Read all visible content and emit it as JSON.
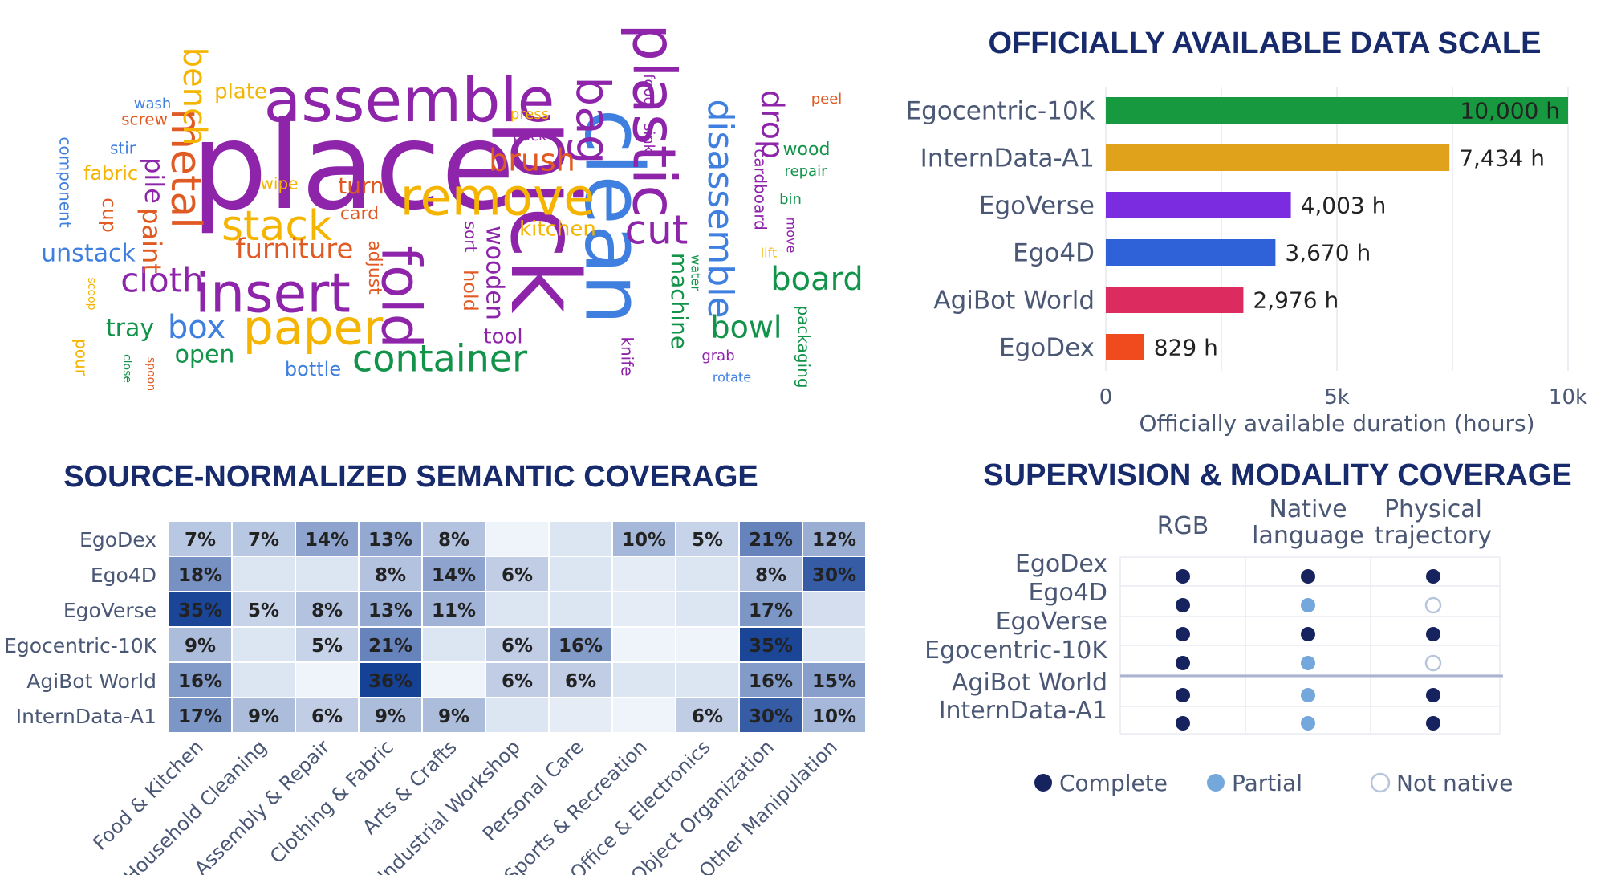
{
  "chart_data": [
    {
      "type": "wordcloud",
      "words": [
        {
          "text": "place",
          "color": "#8e24aa"
        },
        {
          "text": "assemble",
          "color": "#8e24aa"
        },
        {
          "text": "pick",
          "color": "#8e24aa"
        },
        {
          "text": "clean",
          "color": "#3f7fe0"
        },
        {
          "text": "plastic",
          "color": "#8e24aa"
        },
        {
          "text": "remove",
          "color": "#f4b400"
        },
        {
          "text": "insert",
          "color": "#8e24aa"
        },
        {
          "text": "fold",
          "color": "#8e24aa"
        },
        {
          "text": "paper",
          "color": "#f4b400"
        },
        {
          "text": "stack",
          "color": "#f4b400"
        },
        {
          "text": "bag",
          "color": "#8e24aa"
        },
        {
          "text": "cut",
          "color": "#8e24aa"
        },
        {
          "text": "metal",
          "color": "#e05a24"
        },
        {
          "text": "container",
          "color": "#12934a"
        },
        {
          "text": "disassemble",
          "color": "#3f7fe0"
        },
        {
          "text": "bench",
          "color": "#f4b400"
        },
        {
          "text": "drop",
          "color": "#8e24aa"
        },
        {
          "text": "box",
          "color": "#3f7fe0"
        },
        {
          "text": "board",
          "color": "#12934a"
        },
        {
          "text": "bowl",
          "color": "#12934a"
        },
        {
          "text": "cloth",
          "color": "#8e24aa"
        },
        {
          "text": "brush",
          "color": "#e05a24"
        },
        {
          "text": "furniture",
          "color": "#e05a24"
        },
        {
          "text": "pile",
          "color": "#8e24aa"
        },
        {
          "text": "paint",
          "color": "#e05a24"
        },
        {
          "text": "wooden",
          "color": "#8e24aa"
        },
        {
          "text": "machine",
          "color": "#12934a"
        },
        {
          "text": "unstack",
          "color": "#3f7fe0"
        },
        {
          "text": "open",
          "color": "#12934a"
        },
        {
          "text": "tray",
          "color": "#12934a"
        },
        {
          "text": "tool",
          "color": "#8e24aa"
        },
        {
          "text": "turn",
          "color": "#e05a24"
        },
        {
          "text": "plate",
          "color": "#f4b400"
        },
        {
          "text": "kitchen",
          "color": "#f4b400"
        },
        {
          "text": "bottle",
          "color": "#3f7fe0"
        },
        {
          "text": "fabric",
          "color": "#f4b400"
        },
        {
          "text": "cup",
          "color": "#e05a24"
        },
        {
          "text": "hold",
          "color": "#e05a24"
        },
        {
          "text": "component",
          "color": "#3f7fe0"
        },
        {
          "text": "card",
          "color": "#e05a24"
        },
        {
          "text": "wipe",
          "color": "#f4b400"
        },
        {
          "text": "adjust",
          "color": "#e05a24"
        },
        {
          "text": "sort",
          "color": "#8e24aa"
        },
        {
          "text": "pour",
          "color": "#f4b400"
        },
        {
          "text": "packaging",
          "color": "#12934a"
        },
        {
          "text": "cardboard",
          "color": "#8e24aa"
        },
        {
          "text": "wood",
          "color": "#12934a"
        },
        {
          "text": "knife",
          "color": "#8e24aa"
        },
        {
          "text": "screw",
          "color": "#e05a24"
        },
        {
          "text": "stir",
          "color": "#3f7fe0"
        },
        {
          "text": "wash",
          "color": "#3f7fe0"
        },
        {
          "text": "press",
          "color": "#f4b400"
        },
        {
          "text": "pack",
          "color": "#8e24aa"
        },
        {
          "text": "food",
          "color": "#8e24aa"
        },
        {
          "text": "sink",
          "color": "#8e24aa"
        },
        {
          "text": "peel",
          "color": "#e05a24"
        },
        {
          "text": "repair",
          "color": "#12934a"
        },
        {
          "text": "bin",
          "color": "#12934a"
        },
        {
          "text": "move",
          "color": "#8e24aa"
        },
        {
          "text": "lift",
          "color": "#f4b400"
        },
        {
          "text": "water",
          "color": "#12934a"
        },
        {
          "text": "grab",
          "color": "#8e24aa"
        },
        {
          "text": "rotate",
          "color": "#3f7fe0"
        },
        {
          "text": "scoop",
          "color": "#f4b400"
        },
        {
          "text": "close",
          "color": "#12934a"
        },
        {
          "text": "spoon",
          "color": "#e05a24"
        }
      ]
    },
    {
      "type": "bar",
      "orientation": "horizontal",
      "title": "OFFICIALLY AVAILABLE DATA SCALE",
      "xlabel": "Officially available duration (hours)",
      "xlim": [
        0,
        10000
      ],
      "xticks": [
        {
          "v": 0,
          "label": "0"
        },
        {
          "v": 5000,
          "label": "5k"
        },
        {
          "v": 10000,
          "label": "10k"
        }
      ],
      "grid": true,
      "categories": [
        "Egocentric-10K",
        "InternData-A1",
        "EgoVerse",
        "Ego4D",
        "AgiBot World",
        "EgoDex"
      ],
      "values": [
        10000,
        7434,
        4003,
        3670,
        2976,
        829
      ],
      "value_labels": [
        "10,000 h",
        "7,434 h",
        "4,003 h",
        "3,670 h",
        "2,976 h",
        "829 h"
      ],
      "colors": [
        "#17993f",
        "#e0a11b",
        "#7b2be0",
        "#2f62d9",
        "#db2b5f",
        "#f04a1f"
      ]
    },
    {
      "type": "heatmap",
      "title": "SOURCE-NORMALIZED SEMANTIC COVERAGE",
      "rows": [
        "EgoDex",
        "Ego4D",
        "EgoVerse",
        "Egocentric-10K",
        "AgiBot World",
        "InternData-A1"
      ],
      "columns": [
        "Food & Kitchen",
        "Household Cleaning",
        "Assembly & Repair",
        "Clothing & Fabric",
        "Arts & Crafts",
        "Industrial Workshop",
        "Personal Care",
        "Sports & Recreation",
        "Office & Electronics",
        "Object Organization",
        "Other Manipulation"
      ],
      "values": [
        [
          7,
          7,
          14,
          13,
          8,
          0,
          2,
          10,
          5,
          21,
          12
        ],
        [
          18,
          2,
          2,
          8,
          14,
          6,
          2,
          1,
          2,
          8,
          30
        ],
        [
          35,
          5,
          8,
          13,
          11,
          2,
          2,
          1,
          2,
          17,
          3
        ],
        [
          9,
          2,
          5,
          21,
          2,
          6,
          16,
          0,
          0,
          35,
          2
        ],
        [
          16,
          2,
          0,
          36,
          0,
          6,
          6,
          2,
          2,
          16,
          15
        ],
        [
          17,
          9,
          6,
          9,
          9,
          2,
          1,
          0,
          6,
          30,
          10
        ]
      ],
      "cell_labels": [
        [
          "7%",
          "7%",
          "14%",
          "13%",
          "8%",
          "",
          "",
          "10%",
          "5%",
          "21%",
          "12%"
        ],
        [
          "18%",
          "",
          "",
          "8%",
          "14%",
          "6%",
          "",
          "",
          "",
          "8%",
          "30%"
        ],
        [
          "35%",
          "5%",
          "8%",
          "13%",
          "11%",
          "",
          "",
          "",
          "",
          "17%",
          ""
        ],
        [
          "9%",
          "",
          "5%",
          "21%",
          "",
          "6%",
          "16%",
          "",
          "",
          "35%",
          ""
        ],
        [
          "16%",
          "",
          "",
          "36%",
          "",
          "6%",
          "6%",
          "",
          "",
          "16%",
          "15%"
        ],
        [
          "17%",
          "9%",
          "6%",
          "9%",
          "9%",
          "",
          "",
          "",
          "6%",
          "30%",
          "10%"
        ]
      ],
      "colorscale": "Blues"
    },
    {
      "type": "table",
      "title": "SUPERVISION & MODALITY COVERAGE",
      "columns": [
        "RGB",
        "Native language",
        "Physical trajectory"
      ],
      "rows": [
        "EgoDex",
        "Ego4D",
        "EgoVerse",
        "Egocentric-10K",
        "AgiBot World",
        "InternData-A1"
      ],
      "cells": [
        [
          "complete",
          "complete",
          "complete"
        ],
        [
          "complete",
          "partial",
          "not_native"
        ],
        [
          "complete",
          "complete",
          "complete"
        ],
        [
          "complete",
          "partial",
          "not_native"
        ],
        [
          "complete",
          "partial",
          "complete"
        ],
        [
          "complete",
          "partial",
          "complete"
        ]
      ],
      "legend": [
        {
          "key": "complete",
          "label": "Complete",
          "color": "#17235e"
        },
        {
          "key": "partial",
          "label": "Partial",
          "color": "#74a7dc"
        },
        {
          "key": "not_native",
          "label": "Not native",
          "color": "#b6c4dc"
        }
      ]
    }
  ]
}
